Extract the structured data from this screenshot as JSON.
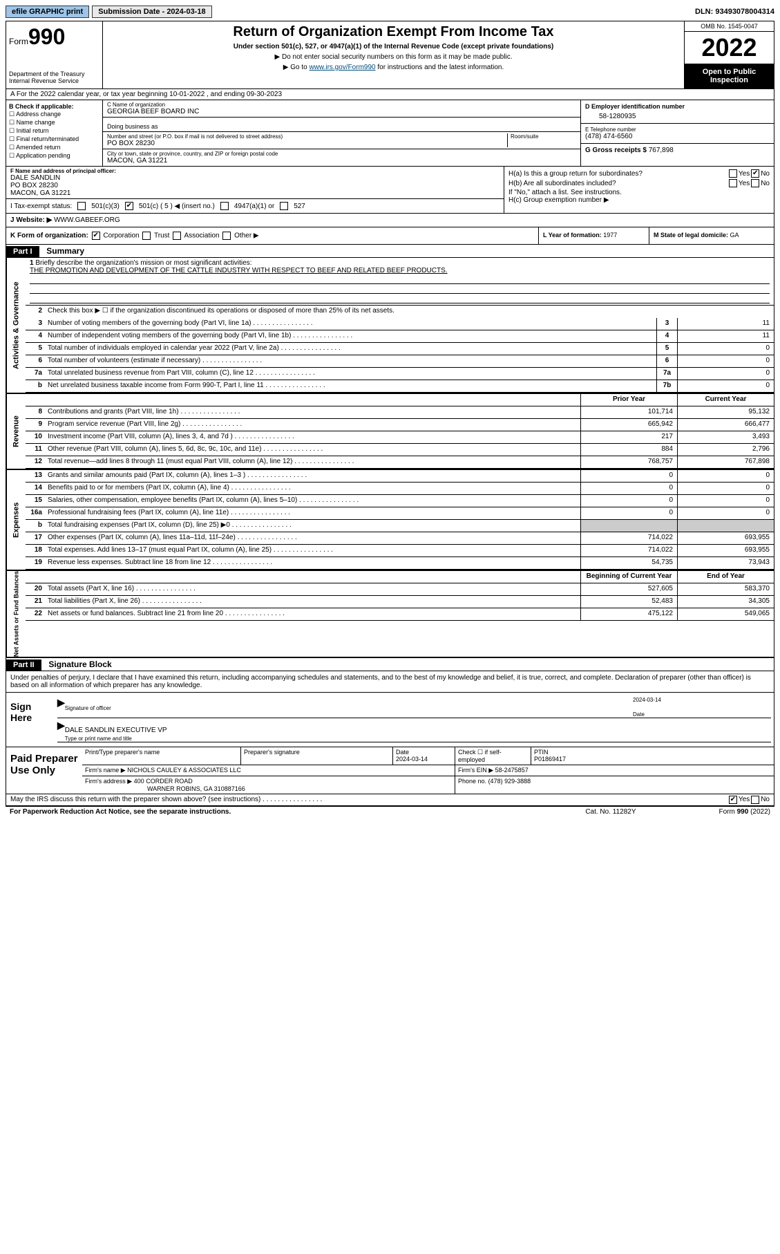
{
  "topbar": {
    "efile": "efile GRAPHIC print",
    "submission_label": "Submission Date - 2024-03-18",
    "dln": "DLN: 93493078004314"
  },
  "header": {
    "form_prefix": "Form",
    "form_number": "990",
    "dept": "Department of the Treasury Internal Revenue Service",
    "title": "Return of Organization Exempt From Income Tax",
    "subtitle": "Under section 501(c), 527, or 4947(a)(1) of the Internal Revenue Code (except private foundations)",
    "note1": "▶ Do not enter social security numbers on this form as it may be made public.",
    "note2_pre": "▶ Go to ",
    "note2_link": "www.irs.gov/Form990",
    "note2_post": " for instructions and the latest information.",
    "omb": "OMB No. 1545-0047",
    "year": "2022",
    "open_public": "Open to Public Inspection"
  },
  "row_a": "A For the 2022 calendar year, or tax year beginning 10-01-2022    , and ending 09-30-2023",
  "section_b": {
    "label": "B Check if applicable:",
    "opts": [
      "Address change",
      "Name change",
      "Initial return",
      "Final return/terminated",
      "Amended return",
      "Application pending"
    ]
  },
  "section_c": {
    "name_hint": "C Name of organization",
    "name": "GEORGIA BEEF BOARD INC",
    "dba_hint": "Doing business as",
    "addr_hint": "Number and street (or P.O. box if mail is not delivered to street address)",
    "room_hint": "Room/suite",
    "addr": "PO BOX 28230",
    "city_hint": "City or town, state or province, country, and ZIP or foreign postal code",
    "city": "MACON, GA  31221"
  },
  "section_d": {
    "hint": "D Employer identification number",
    "val": "58-1280935"
  },
  "section_e": {
    "hint": "E Telephone number",
    "val": "(478) 474-6560"
  },
  "section_g": {
    "label": "G Gross receipts $",
    "val": "767,898"
  },
  "section_f": {
    "hint": "F Name and address of principal officer:",
    "name": "DALE SANDLIN",
    "addr": "PO BOX 28230",
    "city": "MACON, GA  31221"
  },
  "section_i": {
    "label": "I    Tax-exempt status:",
    "opt1": "501(c)(3)",
    "opt2": "501(c) ( 5 ) ◀ (insert no.)",
    "opt3": "4947(a)(1) or",
    "opt4": "527"
  },
  "section_h": {
    "a_label": "H(a)  Is this a group return for subordinates?",
    "b_label": "H(b)  Are all subordinates included?",
    "b_note": "If \"No,\" attach a list. See instructions.",
    "c_label": "H(c)  Group exemption number ▶"
  },
  "section_j": {
    "label": "J    Website: ▶",
    "val": "WWW.GABEEF.ORG"
  },
  "section_k": {
    "label": "K Form of organization:",
    "opts": [
      "Corporation",
      "Trust",
      "Association",
      "Other ▶"
    ]
  },
  "section_l": {
    "label": "L Year of formation:",
    "val": "1977"
  },
  "section_m": {
    "label": "M State of legal domicile:",
    "val": "GA"
  },
  "part1": {
    "tag": "Part I",
    "title": "Summary"
  },
  "vtabs": {
    "activities": "Activities & Governance",
    "revenue": "Revenue",
    "expenses": "Expenses",
    "netassets": "Net Assets or Fund Balances"
  },
  "line1": {
    "num": "1",
    "text": "Briefly describe the organization's mission or most significant activities:",
    "mission": "THE PROMOTION AND DEVELOPMENT OF THE CATTLE INDUSTRY WITH RESPECT TO BEEF AND RELATED BEEF PRODUCTS."
  },
  "line2": {
    "num": "2",
    "text": "Check this box ▶ ☐  if the organization discontinued its operations or disposed of more than 25% of its net assets."
  },
  "lines_gov": [
    {
      "num": "3",
      "text": "Number of voting members of the governing body (Part VI, line 1a)",
      "box": "3",
      "val": "11"
    },
    {
      "num": "4",
      "text": "Number of independent voting members of the governing body (Part VI, line 1b)",
      "box": "4",
      "val": "11"
    },
    {
      "num": "5",
      "text": "Total number of individuals employed in calendar year 2022 (Part V, line 2a)",
      "box": "5",
      "val": "0"
    },
    {
      "num": "6",
      "text": "Total number of volunteers (estimate if necessary)",
      "box": "6",
      "val": "0"
    },
    {
      "num": "7a",
      "text": "Total unrelated business revenue from Part VIII, column (C), line 12",
      "box": "7a",
      "val": "0"
    },
    {
      "num": "b",
      "text": "Net unrelated business taxable income from Form 990-T, Part I, line 11",
      "box": "7b",
      "val": "0"
    }
  ],
  "col_headers": {
    "prior": "Prior Year",
    "current": "Current Year"
  },
  "lines_rev": [
    {
      "num": "8",
      "text": "Contributions and grants (Part VIII, line 1h)",
      "prior": "101,714",
      "cur": "95,132"
    },
    {
      "num": "9",
      "text": "Program service revenue (Part VIII, line 2g)",
      "prior": "665,942",
      "cur": "666,477"
    },
    {
      "num": "10",
      "text": "Investment income (Part VIII, column (A), lines 3, 4, and 7d )",
      "prior": "217",
      "cur": "3,493"
    },
    {
      "num": "11",
      "text": "Other revenue (Part VIII, column (A), lines 5, 6d, 8c, 9c, 10c, and 11e)",
      "prior": "884",
      "cur": "2,796"
    },
    {
      "num": "12",
      "text": "Total revenue—add lines 8 through 11 (must equal Part VIII, column (A), line 12)",
      "prior": "768,757",
      "cur": "767,898"
    }
  ],
  "lines_exp": [
    {
      "num": "13",
      "text": "Grants and similar amounts paid (Part IX, column (A), lines 1–3 )",
      "prior": "0",
      "cur": "0"
    },
    {
      "num": "14",
      "text": "Benefits paid to or for members (Part IX, column (A), line 4)",
      "prior": "0",
      "cur": "0"
    },
    {
      "num": "15",
      "text": "Salaries, other compensation, employee benefits (Part IX, column (A), lines 5–10)",
      "prior": "0",
      "cur": "0"
    },
    {
      "num": "16a",
      "text": "Professional fundraising fees (Part IX, column (A), line 11e)",
      "prior": "0",
      "cur": "0"
    },
    {
      "num": "b",
      "text": "Total fundraising expenses (Part IX, column (D), line 25) ▶0",
      "prior": "",
      "cur": "",
      "shade": true
    },
    {
      "num": "17",
      "text": "Other expenses (Part IX, column (A), lines 11a–11d, 11f–24e)",
      "prior": "714,022",
      "cur": "693,955"
    },
    {
      "num": "18",
      "text": "Total expenses. Add lines 13–17 (must equal Part IX, column (A), line 25)",
      "prior": "714,022",
      "cur": "693,955"
    },
    {
      "num": "19",
      "text": "Revenue less expenses. Subtract line 18 from line 12",
      "prior": "54,735",
      "cur": "73,943"
    }
  ],
  "col_headers2": {
    "prior": "Beginning of Current Year",
    "current": "End of Year"
  },
  "lines_net": [
    {
      "num": "20",
      "text": "Total assets (Part X, line 16)",
      "prior": "527,605",
      "cur": "583,370"
    },
    {
      "num": "21",
      "text": "Total liabilities (Part X, line 26)",
      "prior": "52,483",
      "cur": "34,305"
    },
    {
      "num": "22",
      "text": "Net assets or fund balances. Subtract line 21 from line 20",
      "prior": "475,122",
      "cur": "549,065"
    }
  ],
  "part2": {
    "tag": "Part II",
    "title": "Signature Block"
  },
  "sig_intro": "Under penalties of perjury, I declare that I have examined this return, including accompanying schedules and statements, and to the best of my knowledge and belief, it is true, correct, and complete. Declaration of preparer (other than officer) is based on all information of which preparer has any knowledge.",
  "sign_here": {
    "label": "Sign Here",
    "sig_hint": "Signature of officer",
    "date_hint": "Date",
    "date_val": "2024-03-14",
    "name": "DALE SANDLIN  EXECUTIVE VP",
    "name_hint": "Type or print name and title"
  },
  "paid": {
    "label": "Paid Preparer Use Only",
    "h1": "Print/Type preparer's name",
    "h2": "Preparer's signature",
    "h3": "Date",
    "date": "2024-03-14",
    "h4": "Check ☐ if self-employed",
    "h5": "PTIN",
    "ptin": "P01869417",
    "firm_label": "Firm's name     ▶",
    "firm": "NICHOLS CAULEY & ASSOCIATES LLC",
    "ein_label": "Firm's EIN ▶",
    "ein": "58-2475857",
    "addr_label": "Firm's address ▶",
    "addr1": "400 CORDER ROAD",
    "addr2": "WARNER ROBINS, GA  310887166",
    "phone_label": "Phone no.",
    "phone": "(478) 929-3888"
  },
  "may_discuss": "May the IRS discuss this return with the preparer shown above? (see instructions)",
  "footer": {
    "left": "For Paperwork Reduction Act Notice, see the separate instructions.",
    "mid": "Cat. No. 11282Y",
    "right": "Form 990 (2022)"
  }
}
